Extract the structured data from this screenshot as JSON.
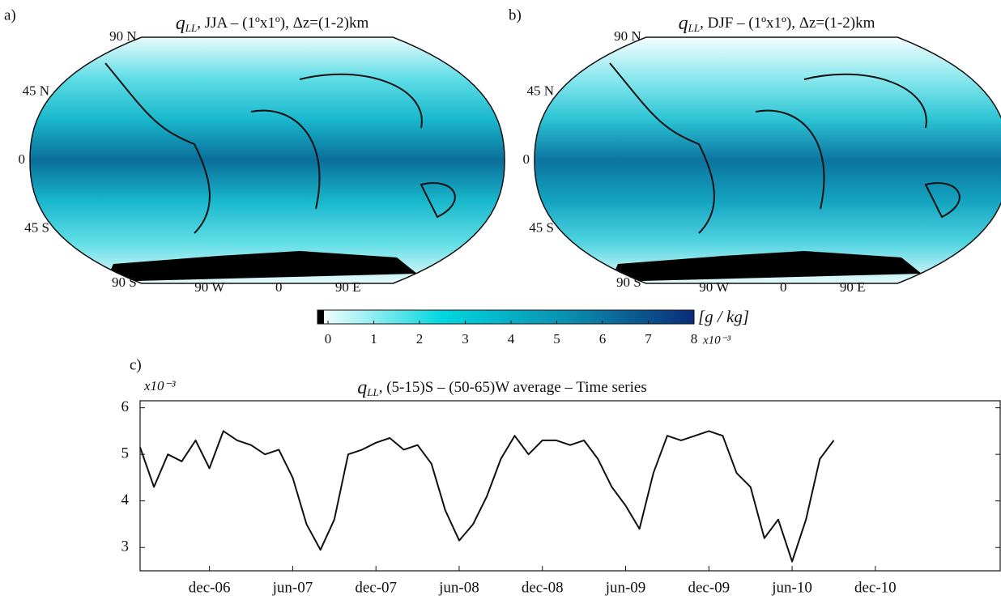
{
  "chart_data": [
    {
      "type": "map",
      "panel": "a)",
      "title_symbol": "q",
      "title_subscript": "LL",
      "title": ", JJA – (1ºx1º), Δz=(1-2)km",
      "ylim": [
        -90,
        90
      ],
      "yticks": [
        {
          "value": 90,
          "label": "90 N"
        },
        {
          "value": 45,
          "label": "45 N"
        },
        0,
        {
          "value": -45,
          "label": "45 S"
        },
        {
          "value": -90,
          "label": "90 S"
        }
      ],
      "xlim": [
        -180,
        180
      ],
      "xticks": [
        {
          "value": -90,
          "label": "90 W"
        },
        0,
        {
          "value": 90,
          "label": "90 E"
        }
      ],
      "colors": [
        "#e8fbfc",
        "#5fdde6",
        "#19b8cc",
        "#0a6e9a",
        "#19b8cc",
        "#5fdde6",
        "#e8fbfc"
      ]
    },
    {
      "type": "map",
      "panel": "b)",
      "title_symbol": "q",
      "title_subscript": "LL",
      "title": ", DJF – (1ºx1º), Δz=(1-2)km",
      "ylim": [
        -90,
        90
      ],
      "yticks": [
        {
          "value": 90,
          "label": "90 N"
        },
        {
          "value": 45,
          "label": "45 N"
        },
        0,
        {
          "value": -45,
          "label": "45 S"
        },
        {
          "value": -90,
          "label": "90 S"
        }
      ],
      "xlim": [
        -180,
        180
      ],
      "xticks": [
        {
          "value": -90,
          "label": "90 W"
        },
        0,
        {
          "value": 90,
          "label": "90 E"
        }
      ],
      "colors": [
        "#f3fdfd",
        "#8ae8ee",
        "#2cc4d4",
        "#0c74a0",
        "#14a4c0",
        "#4fd4e0",
        "#e8fbfc"
      ]
    },
    {
      "type": "colorbar",
      "clim": [
        -0.23,
        8
      ],
      "ticks": [
        0,
        1,
        2,
        3,
        4,
        5,
        6,
        7,
        8
      ],
      "unit": "[g / kg]",
      "multiplier": "x10⁻³",
      "colors": [
        "#ffffff",
        "#00d6de",
        "#0a8fb0",
        "#0a2d78"
      ]
    },
    {
      "type": "line",
      "panel": "c)",
      "title_symbol": "q",
      "title_subscript": "LL",
      "title": ", (5-15)S – (50-65)W average – Time series",
      "ylabel": "x10⁻³",
      "color": "#111111",
      "x": [
        "2006-07",
        "2006-08",
        "2006-09",
        "2006-10",
        "2006-11",
        "2006-12",
        "2007-01",
        "2007-02",
        "2007-03",
        "2007-04",
        "2007-05",
        "2007-06",
        "2007-07",
        "2007-08",
        "2007-09",
        "2007-10",
        "2007-11",
        "2007-12",
        "2008-01",
        "2008-02",
        "2008-03",
        "2008-04",
        "2008-05",
        "2008-06",
        "2008-07",
        "2008-08",
        "2008-09",
        "2008-10",
        "2008-11",
        "2008-12",
        "2009-01",
        "2009-02",
        "2009-03",
        "2009-04",
        "2009-05",
        "2009-06",
        "2009-07",
        "2009-08",
        "2009-09",
        "2009-10",
        "2009-11",
        "2009-12",
        "2010-01",
        "2010-02",
        "2010-03",
        "2010-04",
        "2010-05",
        "2010-06",
        "2010-07",
        "2010-08",
        "2010-09"
      ],
      "values": [
        5.15,
        4.3,
        5.0,
        4.85,
        5.3,
        4.7,
        5.5,
        5.3,
        5.2,
        5.0,
        5.1,
        4.5,
        3.5,
        2.95,
        3.6,
        5.0,
        5.1,
        5.25,
        5.35,
        5.1,
        5.2,
        4.8,
        3.8,
        3.15,
        3.5,
        4.1,
        4.9,
        5.4,
        5.0,
        5.3,
        5.3,
        5.2,
        5.3,
        4.9,
        4.3,
        3.9,
        3.4,
        4.6,
        5.4,
        5.3,
        5.4,
        5.5,
        5.4,
        4.6,
        4.3,
        3.2,
        3.6,
        2.7,
        3.6,
        4.9,
        5.3
      ],
      "xlim": [
        "2006-07",
        "2011-09"
      ],
      "xticks": [
        {
          "value": "2006-12",
          "label": "dec-06"
        },
        {
          "value": "2007-06",
          "label": "jun-07"
        },
        {
          "value": "2007-12",
          "label": "dec-07"
        },
        {
          "value": "2008-06",
          "label": "jun-08"
        },
        {
          "value": "2008-12",
          "label": "dec-08"
        },
        {
          "value": "2009-06",
          "label": "jun-09"
        },
        {
          "value": "2009-12",
          "label": "dec-09"
        },
        {
          "value": "2010-06",
          "label": "jun-10"
        },
        {
          "value": "2010-12",
          "label": "dec-10"
        }
      ],
      "ylim": [
        2.5,
        6.15
      ],
      "yticks": [
        3,
        4,
        5,
        6
      ]
    }
  ]
}
